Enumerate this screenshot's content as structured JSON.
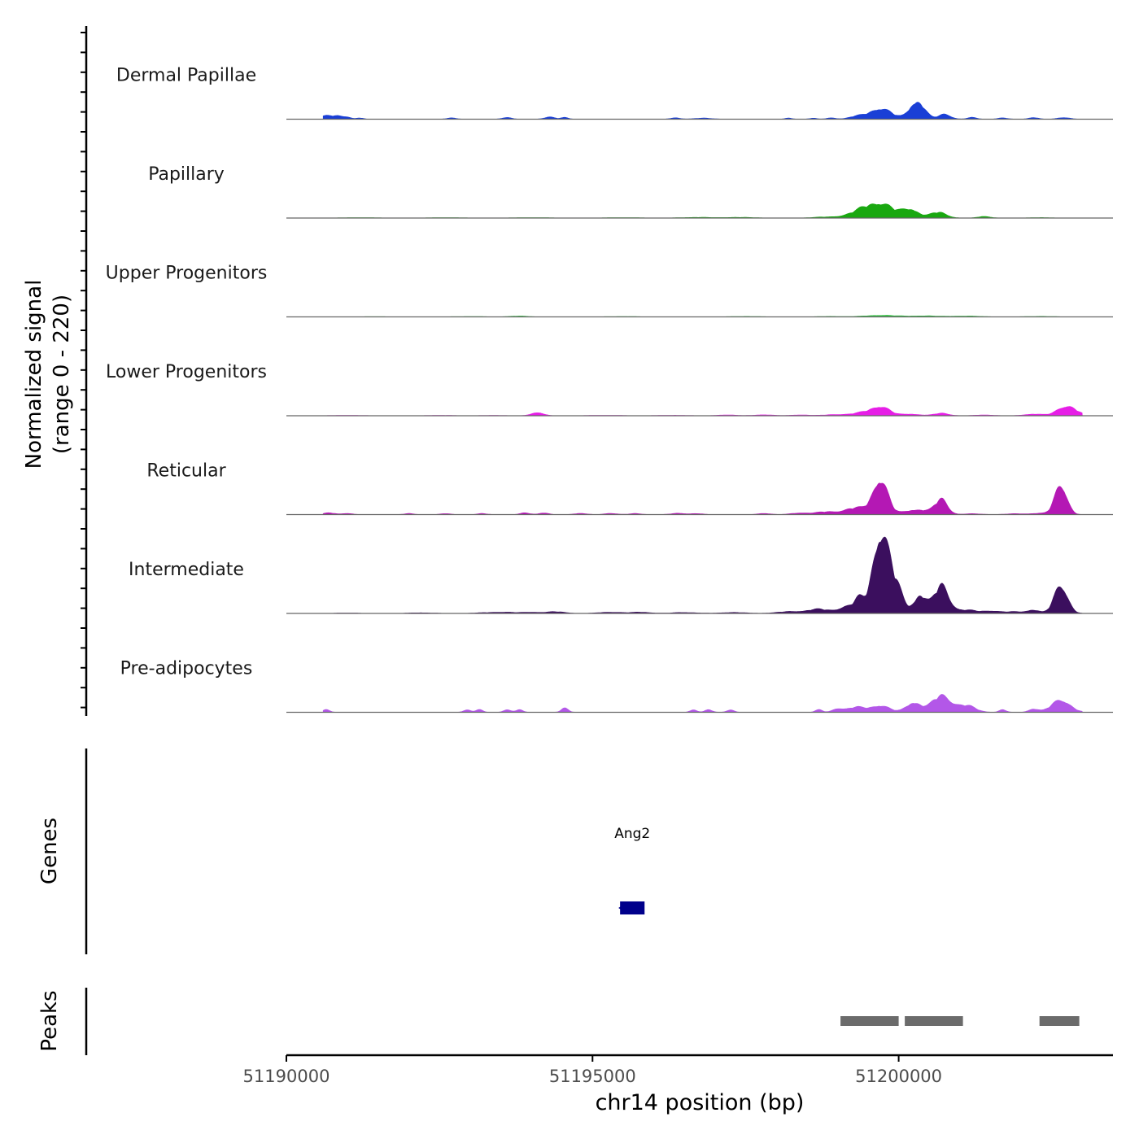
{
  "chart_data": {
    "type": "area",
    "title": "",
    "xlabel": "chr14 position (bp)",
    "ylabel_line1": "Normalized signal",
    "ylabel_line2": "(range 0 - 220)",
    "y_range": [
      0,
      220
    ],
    "xlim": [
      51190000,
      51203500
    ],
    "x_ticks": [
      51190000,
      51195000,
      51200000
    ],
    "x_tick_labels": [
      "51190000",
      "51195000",
      "51200000"
    ],
    "signal_x_start": 51190600,
    "signal_x_end": 51203000,
    "genes_label": "Genes",
    "peaks_label": "Peaks",
    "series": [
      {
        "name": "Dermal Papillae",
        "color": "#1a3fd6",
        "bumps": [
          [
            51190650,
            0.04,
            120
          ],
          [
            51190850,
            0.03,
            80
          ],
          [
            51191000,
            0.025,
            60
          ],
          [
            51191200,
            0.015,
            60
          ],
          [
            51192700,
            0.015,
            80
          ],
          [
            51193600,
            0.02,
            80
          ],
          [
            51194300,
            0.025,
            90
          ],
          [
            51194550,
            0.02,
            60
          ],
          [
            51196350,
            0.015,
            80
          ],
          [
            51196800,
            0.012,
            150
          ],
          [
            51198200,
            0.012,
            60
          ],
          [
            51198600,
            0.012,
            60
          ],
          [
            51198900,
            0.015,
            80
          ],
          [
            51199300,
            0.03,
            120
          ],
          [
            51199700,
            0.13,
            180
          ],
          [
            51200300,
            0.22,
            120
          ],
          [
            51200750,
            0.06,
            100
          ],
          [
            51201200,
            0.02,
            80
          ],
          [
            51201700,
            0.015,
            80
          ],
          [
            51202200,
            0.02,
            80
          ],
          [
            51202700,
            0.02,
            100
          ]
        ]
      },
      {
        "name": "Papillary",
        "color": "#19a810",
        "bumps": [
          [
            51191200,
            0.005,
            300
          ],
          [
            51192600,
            0.005,
            300
          ],
          [
            51194000,
            0.005,
            300
          ],
          [
            51195500,
            0.005,
            300
          ],
          [
            51196700,
            0.008,
            250
          ],
          [
            51197400,
            0.008,
            250
          ],
          [
            51198800,
            0.012,
            200
          ],
          [
            51199350,
            0.06,
            200
          ],
          [
            51199700,
            0.17,
            220
          ],
          [
            51200200,
            0.1,
            130
          ],
          [
            51200650,
            0.07,
            130
          ],
          [
            51201400,
            0.02,
            100
          ],
          [
            51202300,
            0.005,
            200
          ]
        ]
      },
      {
        "name": "Upper Progenitors",
        "color": "#3cc24b",
        "bumps": [
          [
            51191500,
            0.003,
            300
          ],
          [
            51193000,
            0.004,
            300
          ],
          [
            51193800,
            0.01,
            150
          ],
          [
            51195500,
            0.004,
            300
          ],
          [
            51197500,
            0.005,
            300
          ],
          [
            51198900,
            0.006,
            200
          ],
          [
            51199700,
            0.02,
            250
          ],
          [
            51200400,
            0.012,
            250
          ],
          [
            51201100,
            0.01,
            250
          ],
          [
            51202300,
            0.006,
            250
          ]
        ]
      },
      {
        "name": "Lower Progenitors",
        "color": "#e61ee6",
        "bumps": [
          [
            51191000,
            0.004,
            300
          ],
          [
            51192500,
            0.004,
            300
          ],
          [
            51193400,
            0.004,
            200
          ],
          [
            51194100,
            0.04,
            100
          ],
          [
            51195200,
            0.005,
            300
          ],
          [
            51196300,
            0.005,
            300
          ],
          [
            51197200,
            0.01,
            150
          ],
          [
            51197800,
            0.012,
            150
          ],
          [
            51198400,
            0.01,
            150
          ],
          [
            51199000,
            0.015,
            200
          ],
          [
            51199400,
            0.03,
            150
          ],
          [
            51199700,
            0.11,
            150
          ],
          [
            51200200,
            0.02,
            150
          ],
          [
            51200700,
            0.03,
            120
          ],
          [
            51201400,
            0.01,
            150
          ],
          [
            51202200,
            0.02,
            150
          ],
          [
            51202750,
            0.12,
            150
          ]
        ]
      },
      {
        "name": "Reticular",
        "color": "#b418b4",
        "bumps": [
          [
            51190700,
            0.02,
            100
          ],
          [
            51191000,
            0.015,
            80
          ],
          [
            51192000,
            0.012,
            80
          ],
          [
            51192600,
            0.012,
            80
          ],
          [
            51193200,
            0.012,
            80
          ],
          [
            51193900,
            0.02,
            80
          ],
          [
            51194200,
            0.02,
            80
          ],
          [
            51194800,
            0.015,
            100
          ],
          [
            51195300,
            0.015,
            100
          ],
          [
            51195700,
            0.012,
            100
          ],
          [
            51196400,
            0.015,
            120
          ],
          [
            51196700,
            0.012,
            100
          ],
          [
            51197800,
            0.015,
            100
          ],
          [
            51198400,
            0.02,
            150
          ],
          [
            51198800,
            0.03,
            150
          ],
          [
            51199300,
            0.08,
            200
          ],
          [
            51199700,
            0.42,
            120
          ],
          [
            51200300,
            0.06,
            200
          ],
          [
            51200700,
            0.18,
            100
          ],
          [
            51201200,
            0.01,
            150
          ],
          [
            51201900,
            0.01,
            150
          ],
          [
            51202300,
            0.015,
            150
          ],
          [
            51202650,
            0.36,
            100
          ]
        ]
      },
      {
        "name": "Intermediate",
        "color": "#3b0f5e",
        "bumps": [
          [
            51191000,
            0.005,
            200
          ],
          [
            51192200,
            0.008,
            200
          ],
          [
            51193300,
            0.01,
            200
          ],
          [
            51193600,
            0.012,
            150
          ],
          [
            51194000,
            0.015,
            150
          ],
          [
            51194400,
            0.02,
            150
          ],
          [
            51195300,
            0.015,
            200
          ],
          [
            51195800,
            0.015,
            150
          ],
          [
            51196500,
            0.012,
            200
          ],
          [
            51197300,
            0.012,
            200
          ],
          [
            51198200,
            0.02,
            200
          ],
          [
            51198700,
            0.05,
            200
          ],
          [
            51199150,
            0.08,
            120
          ],
          [
            51199350,
            0.15,
            80
          ],
          [
            51199700,
            0.95,
            130
          ],
          [
            51199950,
            0.3,
            120
          ],
          [
            51200350,
            0.22,
            100
          ],
          [
            51200700,
            0.34,
            120
          ],
          [
            51201100,
            0.04,
            150
          ],
          [
            51201500,
            0.03,
            150
          ],
          [
            51201900,
            0.02,
            150
          ],
          [
            51202200,
            0.04,
            100
          ],
          [
            51202650,
            0.34,
            110
          ]
        ]
      },
      {
        "name": "Pre-adipocytes",
        "color": "#b357e8",
        "bumps": [
          [
            51190650,
            0.03,
            60
          ],
          [
            51192950,
            0.03,
            60
          ],
          [
            51193150,
            0.03,
            60
          ],
          [
            51193600,
            0.03,
            60
          ],
          [
            51193800,
            0.03,
            60
          ],
          [
            51194550,
            0.05,
            60
          ],
          [
            51196650,
            0.03,
            60
          ],
          [
            51196900,
            0.03,
            60
          ],
          [
            51197250,
            0.03,
            60
          ],
          [
            51198700,
            0.03,
            60
          ],
          [
            51199000,
            0.04,
            80
          ],
          [
            51199300,
            0.06,
            150
          ],
          [
            51199700,
            0.08,
            150
          ],
          [
            51200250,
            0.12,
            120
          ],
          [
            51200700,
            0.2,
            150
          ],
          [
            51201100,
            0.08,
            150
          ],
          [
            51201700,
            0.03,
            60
          ],
          [
            51202200,
            0.04,
            80
          ],
          [
            51202650,
            0.15,
            150
          ]
        ]
      }
    ],
    "genes": [
      {
        "name": "Ang2",
        "start": 51195450,
        "end": 51195850,
        "strand": "-",
        "color": "#00008b"
      }
    ],
    "peaks": [
      {
        "start": 51199050,
        "end": 51200000
      },
      {
        "start": 51200100,
        "end": 51201050
      },
      {
        "start": 51202300,
        "end": 51202950
      }
    ]
  }
}
